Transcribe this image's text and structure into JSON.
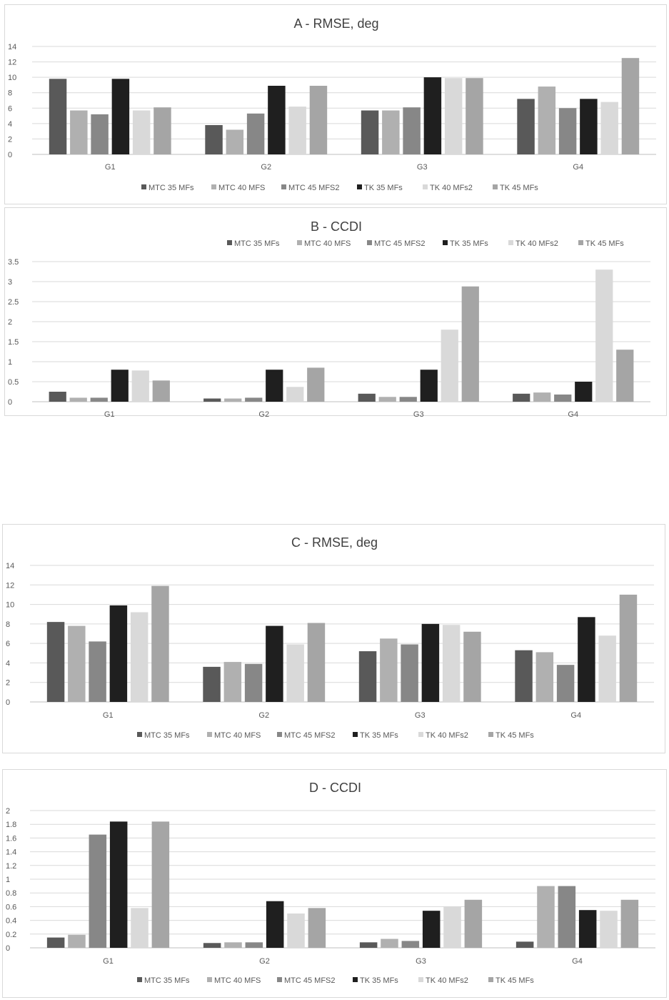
{
  "colors": [
    "#595959",
    "#b0b0b0",
    "#878787",
    "#1f1f1f",
    "#d9d9d9",
    "#a5a5a5"
  ],
  "series_names": [
    "MTC 35 MFs",
    "MTC 40 MFS",
    "MTC 45 MFS2",
    "TK 35 MFs",
    "TK 40 MFs2",
    "TK 45 MFs"
  ],
  "chart_data": [
    {
      "id": "A",
      "type": "bar",
      "title": "A - RMSE, deg",
      "categories": [
        "G1",
        "G2",
        "G3",
        "G4"
      ],
      "ylim": [
        0,
        14
      ],
      "yticks": [
        "0",
        "2",
        "4",
        "6",
        "8",
        "10",
        "12",
        "14"
      ],
      "legend": "bottom",
      "series": [
        {
          "name": "MTC 35 MFs",
          "values": [
            9.8,
            3.8,
            5.7,
            7.2
          ]
        },
        {
          "name": "MTC 40 MFS",
          "values": [
            5.7,
            3.2,
            5.7,
            8.8
          ]
        },
        {
          "name": "MTC 45 MFS2",
          "values": [
            5.2,
            5.3,
            6.1,
            6.0
          ]
        },
        {
          "name": "TK 35 MFs",
          "values": [
            9.8,
            8.9,
            10.0,
            7.2
          ]
        },
        {
          "name": "TK 40 MFs2",
          "values": [
            5.7,
            6.2,
            9.9,
            6.8
          ]
        },
        {
          "name": "TK 45 MFs",
          "values": [
            6.1,
            8.9,
            9.9,
            12.5
          ]
        }
      ]
    },
    {
      "id": "B",
      "type": "bar",
      "title": "B - CCDI",
      "categories": [
        "G1",
        "G2",
        "G3",
        "G4"
      ],
      "ylim": [
        0,
        3.5
      ],
      "yticks": [
        "0",
        "0.5",
        "1",
        "1.5",
        "2",
        "2.5",
        "3",
        "3.5"
      ],
      "legend": "top",
      "series": [
        {
          "name": "MTC 35 MFs",
          "values": [
            0.25,
            0.08,
            0.2,
            0.2
          ]
        },
        {
          "name": "MTC 40 MFS",
          "values": [
            0.1,
            0.08,
            0.12,
            0.23
          ]
        },
        {
          "name": "MTC 45 MFS2",
          "values": [
            0.1,
            0.1,
            0.12,
            0.18
          ]
        },
        {
          "name": "TK 35 MFs",
          "values": [
            0.8,
            0.8,
            0.8,
            0.5
          ]
        },
        {
          "name": "TK 40 MFs2",
          "values": [
            0.78,
            0.37,
            1.8,
            3.3
          ]
        },
        {
          "name": "TK 45 MFs",
          "values": [
            0.53,
            0.85,
            2.88,
            1.3
          ]
        }
      ]
    },
    {
      "id": "C",
      "type": "bar",
      "title": "C - RMSE, deg",
      "categories": [
        "G1",
        "G2",
        "G3",
        "G4"
      ],
      "ylim": [
        0,
        14
      ],
      "yticks": [
        "0",
        "2",
        "4",
        "6",
        "8",
        "10",
        "12",
        "14"
      ],
      "legend": "bottom",
      "series": [
        {
          "name": "MTC 35 MFs",
          "values": [
            8.2,
            3.6,
            5.2,
            5.3
          ]
        },
        {
          "name": "MTC 40 MFS",
          "values": [
            7.8,
            4.1,
            6.5,
            5.1
          ]
        },
        {
          "name": "MTC 45 MFS2",
          "values": [
            6.2,
            3.9,
            5.9,
            3.8
          ]
        },
        {
          "name": "TK 35 MFs",
          "values": [
            9.9,
            7.8,
            8.0,
            8.7
          ]
        },
        {
          "name": "TK 40 MFs2",
          "values": [
            9.2,
            5.9,
            7.9,
            6.8
          ]
        },
        {
          "name": "TK 45 MFs",
          "values": [
            11.9,
            8.1,
            7.2,
            11.0
          ]
        }
      ]
    },
    {
      "id": "D",
      "type": "bar",
      "title": "D - CCDI",
      "categories": [
        "G1",
        "G2",
        "G3",
        "G4"
      ],
      "ylim": [
        0,
        2
      ],
      "yticks": [
        "0",
        "0.2",
        "0.4",
        "0.6",
        "0.8",
        "1",
        "1.2",
        "1.4",
        "1.6",
        "1.8",
        "2"
      ],
      "legend": "bottom",
      "series": [
        {
          "name": "MTC 35 MFs",
          "values": [
            0.15,
            0.07,
            0.08,
            0.09
          ]
        },
        {
          "name": "MTC 40 MFS",
          "values": [
            0.19,
            0.08,
            0.13,
            0.9
          ]
        },
        {
          "name": "MTC 45 MFS2",
          "values": [
            1.65,
            0.08,
            0.1,
            0.9
          ]
        },
        {
          "name": "TK 35 MFs",
          "values": [
            1.84,
            0.68,
            0.54,
            0.55
          ]
        },
        {
          "name": "TK 40 MFs2",
          "values": [
            0.58,
            0.5,
            0.6,
            0.54
          ]
        },
        {
          "name": "TK 45 MFs",
          "values": [
            1.84,
            0.58,
            0.7,
            0.7
          ]
        }
      ]
    }
  ]
}
